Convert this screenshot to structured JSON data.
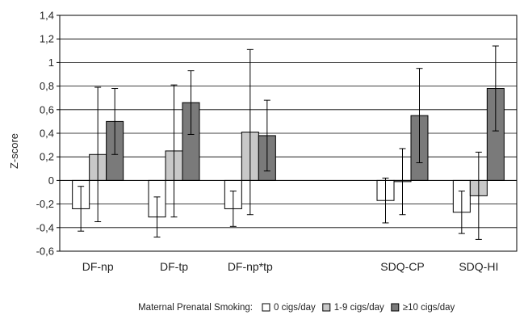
{
  "chart_data": {
    "type": "bar",
    "ylabel": "Z-score",
    "ylim": [
      -0.6,
      1.4
    ],
    "ytick_step": 0.2,
    "ytick_labels": [
      "-0,6",
      "-0,4",
      "-0,2",
      "0",
      "0,2",
      "0,4",
      "0,6",
      "0,8",
      "1",
      "1,2",
      "1,4"
    ],
    "grid": true,
    "category_slots": [
      0,
      1,
      2,
      4,
      5
    ],
    "slot_count": 6,
    "categories": [
      "DF-np",
      "DF-tp",
      "DF-np*tp",
      "SDQ-CP",
      "SDQ-HI"
    ],
    "series": [
      {
        "name": "0 cigs/day",
        "color": "#ffffff",
        "values": [
          -0.24,
          -0.31,
          -0.24,
          -0.17,
          -0.27
        ],
        "err_low": [
          -0.43,
          -0.48,
          -0.39,
          -0.36,
          -0.45
        ],
        "err_high": [
          -0.05,
          -0.14,
          -0.09,
          0.02,
          -0.09
        ]
      },
      {
        "name": "1-9 cigs/day",
        "color": "#c8c8c8",
        "values": [
          0.22,
          0.25,
          0.41,
          -0.01,
          -0.13
        ],
        "err_low": [
          -0.35,
          -0.31,
          -0.29,
          -0.29,
          -0.5
        ],
        "err_high": [
          0.79,
          0.81,
          1.11,
          0.27,
          0.24
        ]
      },
      {
        "name": "≥10 cigs/day",
        "color": "#7a7a7a",
        "values": [
          0.5,
          0.66,
          0.38,
          0.55,
          0.78
        ],
        "err_low": [
          0.22,
          0.39,
          0.08,
          0.15,
          0.42
        ],
        "err_high": [
          0.78,
          0.93,
          0.68,
          0.95,
          1.14
        ]
      }
    ],
    "legend": {
      "title": "Maternal Prenatal Smoking:",
      "placement": "bottom"
    }
  }
}
